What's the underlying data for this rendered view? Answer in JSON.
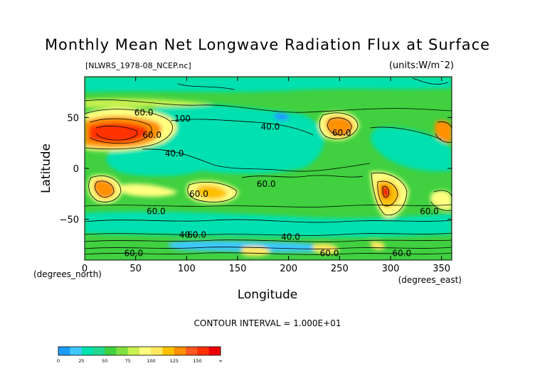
{
  "chart_data": {
    "type": "contour",
    "title": "Monthly Mean Net Longwave Radiation Flux at Surface",
    "source_file": "[NLWRS_1978-08_NCEP.nc]",
    "units": "(units:W/m¯2)",
    "xlabel": "Longitude",
    "ylabel": "Latitude",
    "x_unit_label": "(degrees_east)",
    "y_unit_label": "(degrees_north)",
    "xlim": [
      0,
      360
    ],
    "ylim": [
      -90,
      90
    ],
    "x_ticks": [
      0,
      50,
      100,
      150,
      200,
      250,
      300,
      350
    ],
    "y_ticks": [
      50,
      0,
      -50
    ],
    "contour_interval_text": "CONTOUR INTERVAL = 1.000E+01",
    "contour_labels": [
      {
        "text": "60.0",
        "lon": 58,
        "lat": 52
      },
      {
        "text": "100",
        "lon": 96,
        "lat": 46
      },
      {
        "text": "40.0",
        "lon": 182,
        "lat": 38
      },
      {
        "text": "60.0",
        "lon": 66,
        "lat": 30
      },
      {
        "text": "40.0",
        "lon": 88,
        "lat": 12
      },
      {
        "text": "60.0",
        "lon": 252,
        "lat": 32
      },
      {
        "text": "60.0",
        "lon": 178,
        "lat": -18
      },
      {
        "text": "60.0",
        "lon": 112,
        "lat": -28
      },
      {
        "text": "60.0",
        "lon": 70,
        "lat": -45
      },
      {
        "text": "60.0",
        "lon": 338,
        "lat": -45
      },
      {
        "text": "40.0",
        "lon": 102,
        "lat": -68
      },
      {
        "text": "60.0",
        "lon": 110,
        "lat": -68
      },
      {
        "text": "40.0",
        "lon": 202,
        "lat": -70
      },
      {
        "text": "60.0",
        "lon": 48,
        "lat": -86
      },
      {
        "text": "60.0",
        "lon": 240,
        "lat": -86
      },
      {
        "text": "60.0",
        "lon": 311,
        "lat": -86
      }
    ],
    "colorbar": {
      "labels": [
        "0",
        "25",
        "50",
        "75",
        "100",
        "125",
        "150",
        "∞"
      ],
      "colors": [
        "#1e9cff",
        "#3ec8ff",
        "#00e0b0",
        "#20d890",
        "#40d040",
        "#80e040",
        "#c8f050",
        "#ffff80",
        "#ffe860",
        "#ffc000",
        "#ff9000",
        "#ff5820",
        "#ff3000",
        "#ee0000"
      ]
    }
  }
}
